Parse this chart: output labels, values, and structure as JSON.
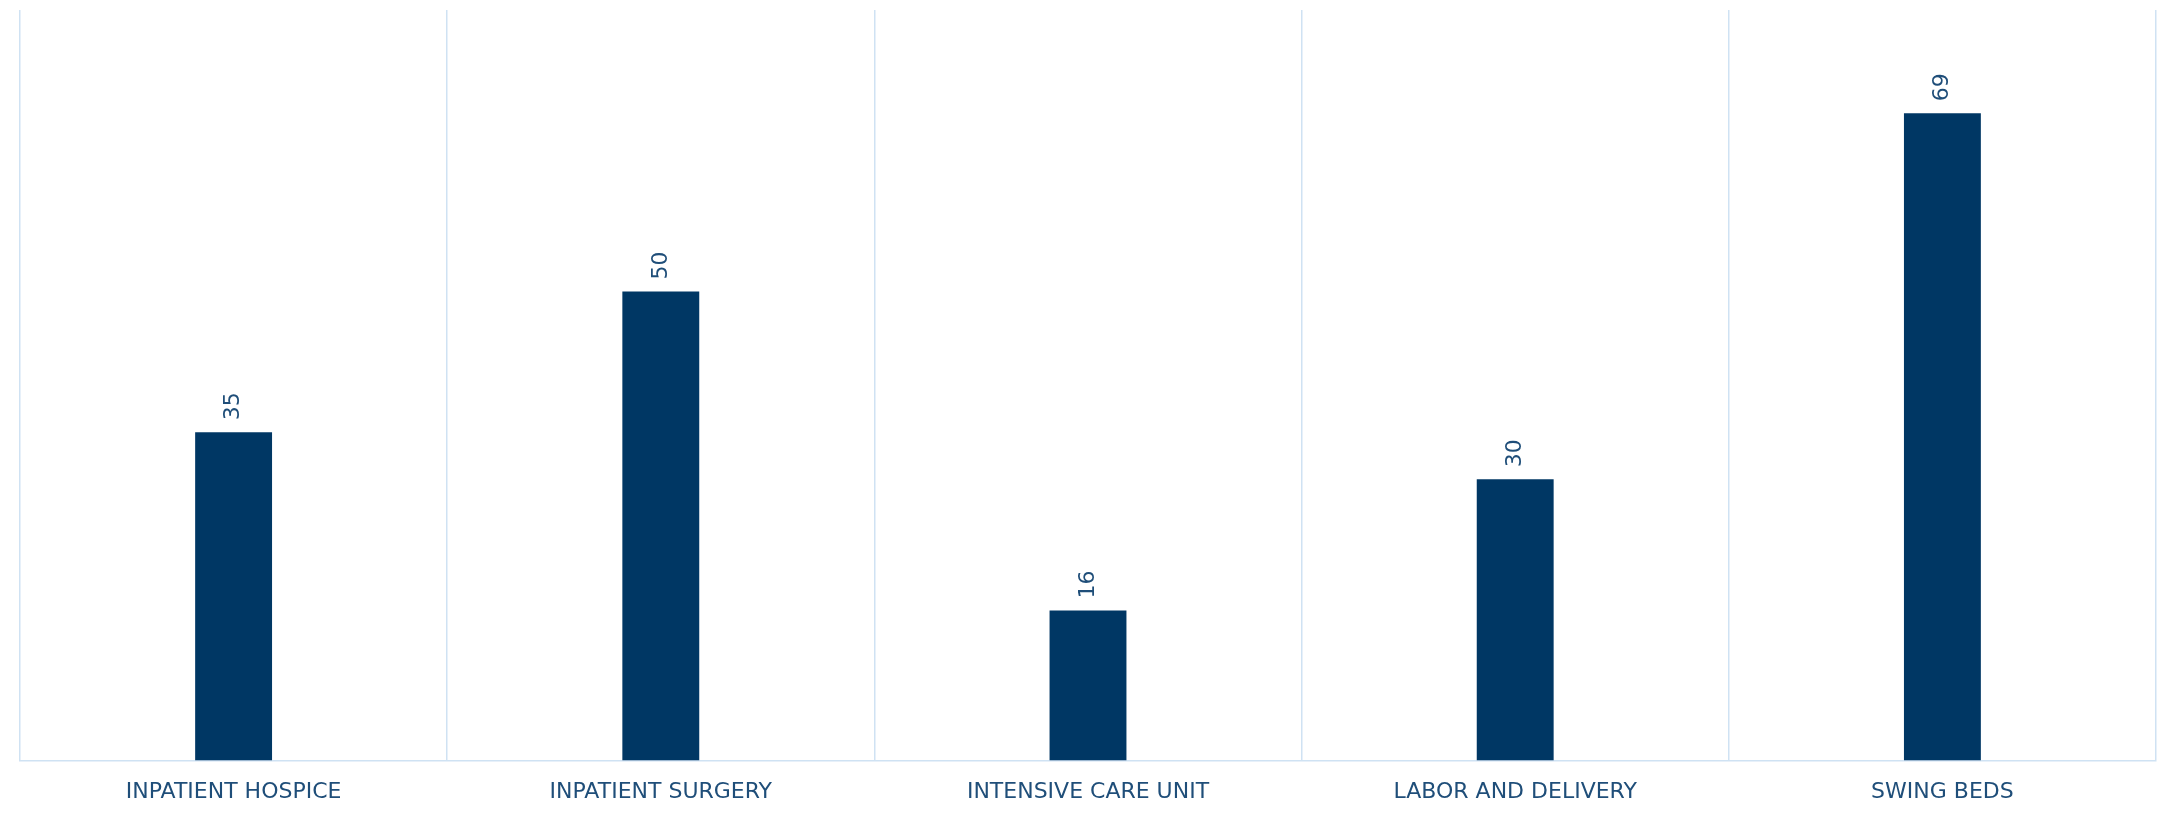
{
  "chart_data": {
    "type": "bar",
    "categories": [
      "INPATIENT HOSPICE",
      "INPATIENT SURGERY",
      "INTENSIVE CARE UNIT",
      "LABOR AND DELIVERY",
      "SWING BEDS"
    ],
    "values": [
      35,
      50,
      16,
      30,
      69
    ],
    "color": "#003764",
    "data_labels": true,
    "ylim": [
      0,
      80
    ],
    "tick_labels": "x",
    "grid": "x",
    "legend": false
  }
}
